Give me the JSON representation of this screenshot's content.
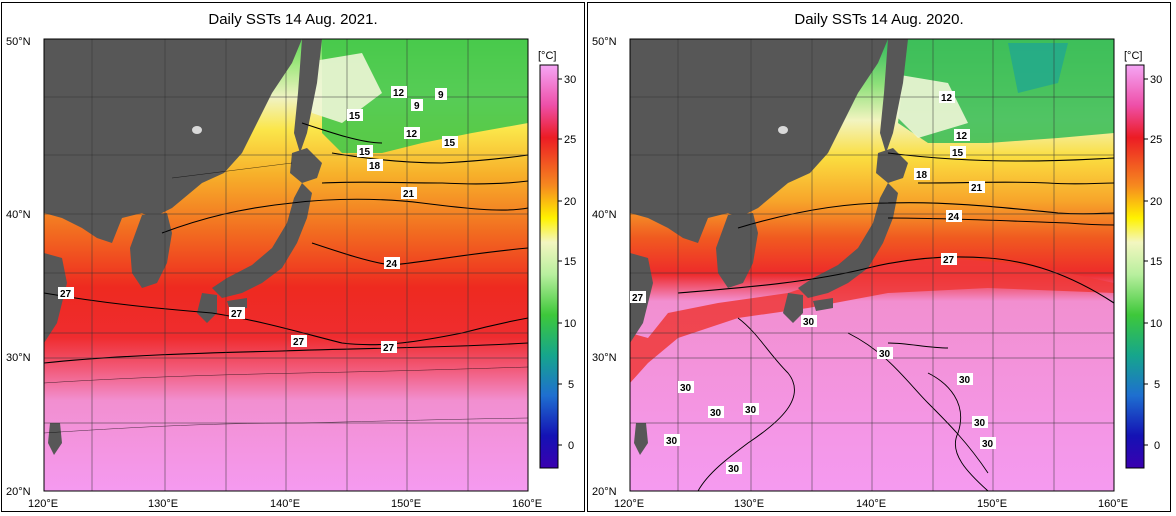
{
  "panels": [
    {
      "title": "Daily SSTs 14 Aug. 2021.",
      "contour_labels": [
        "12",
        "9",
        "9",
        "15",
        "12",
        "15",
        "15",
        "18",
        "21",
        "24",
        "27",
        "27",
        "27",
        "27"
      ]
    },
    {
      "title": "Daily SSTs 14 Aug. 2020.",
      "contour_labels": [
        "12",
        "12",
        "15",
        "18",
        "21",
        "24",
        "27",
        "27",
        "30",
        "30",
        "30",
        "30",
        "30",
        "30",
        "30",
        "30",
        "30",
        "30"
      ]
    }
  ],
  "axes": {
    "lon_labels": [
      "120°E",
      "130°E",
      "140°E",
      "150°E",
      "160°E"
    ],
    "lat_labels": [
      "50°N",
      "40°N",
      "30°N",
      "20°N"
    ]
  },
  "colorbar": {
    "unit": "[°C]",
    "ticks": [
      "30",
      "25",
      "20",
      "15",
      "10",
      "5",
      "0"
    ]
  },
  "colors": {
    "land": "#575757",
    "grid": "#333333"
  }
}
